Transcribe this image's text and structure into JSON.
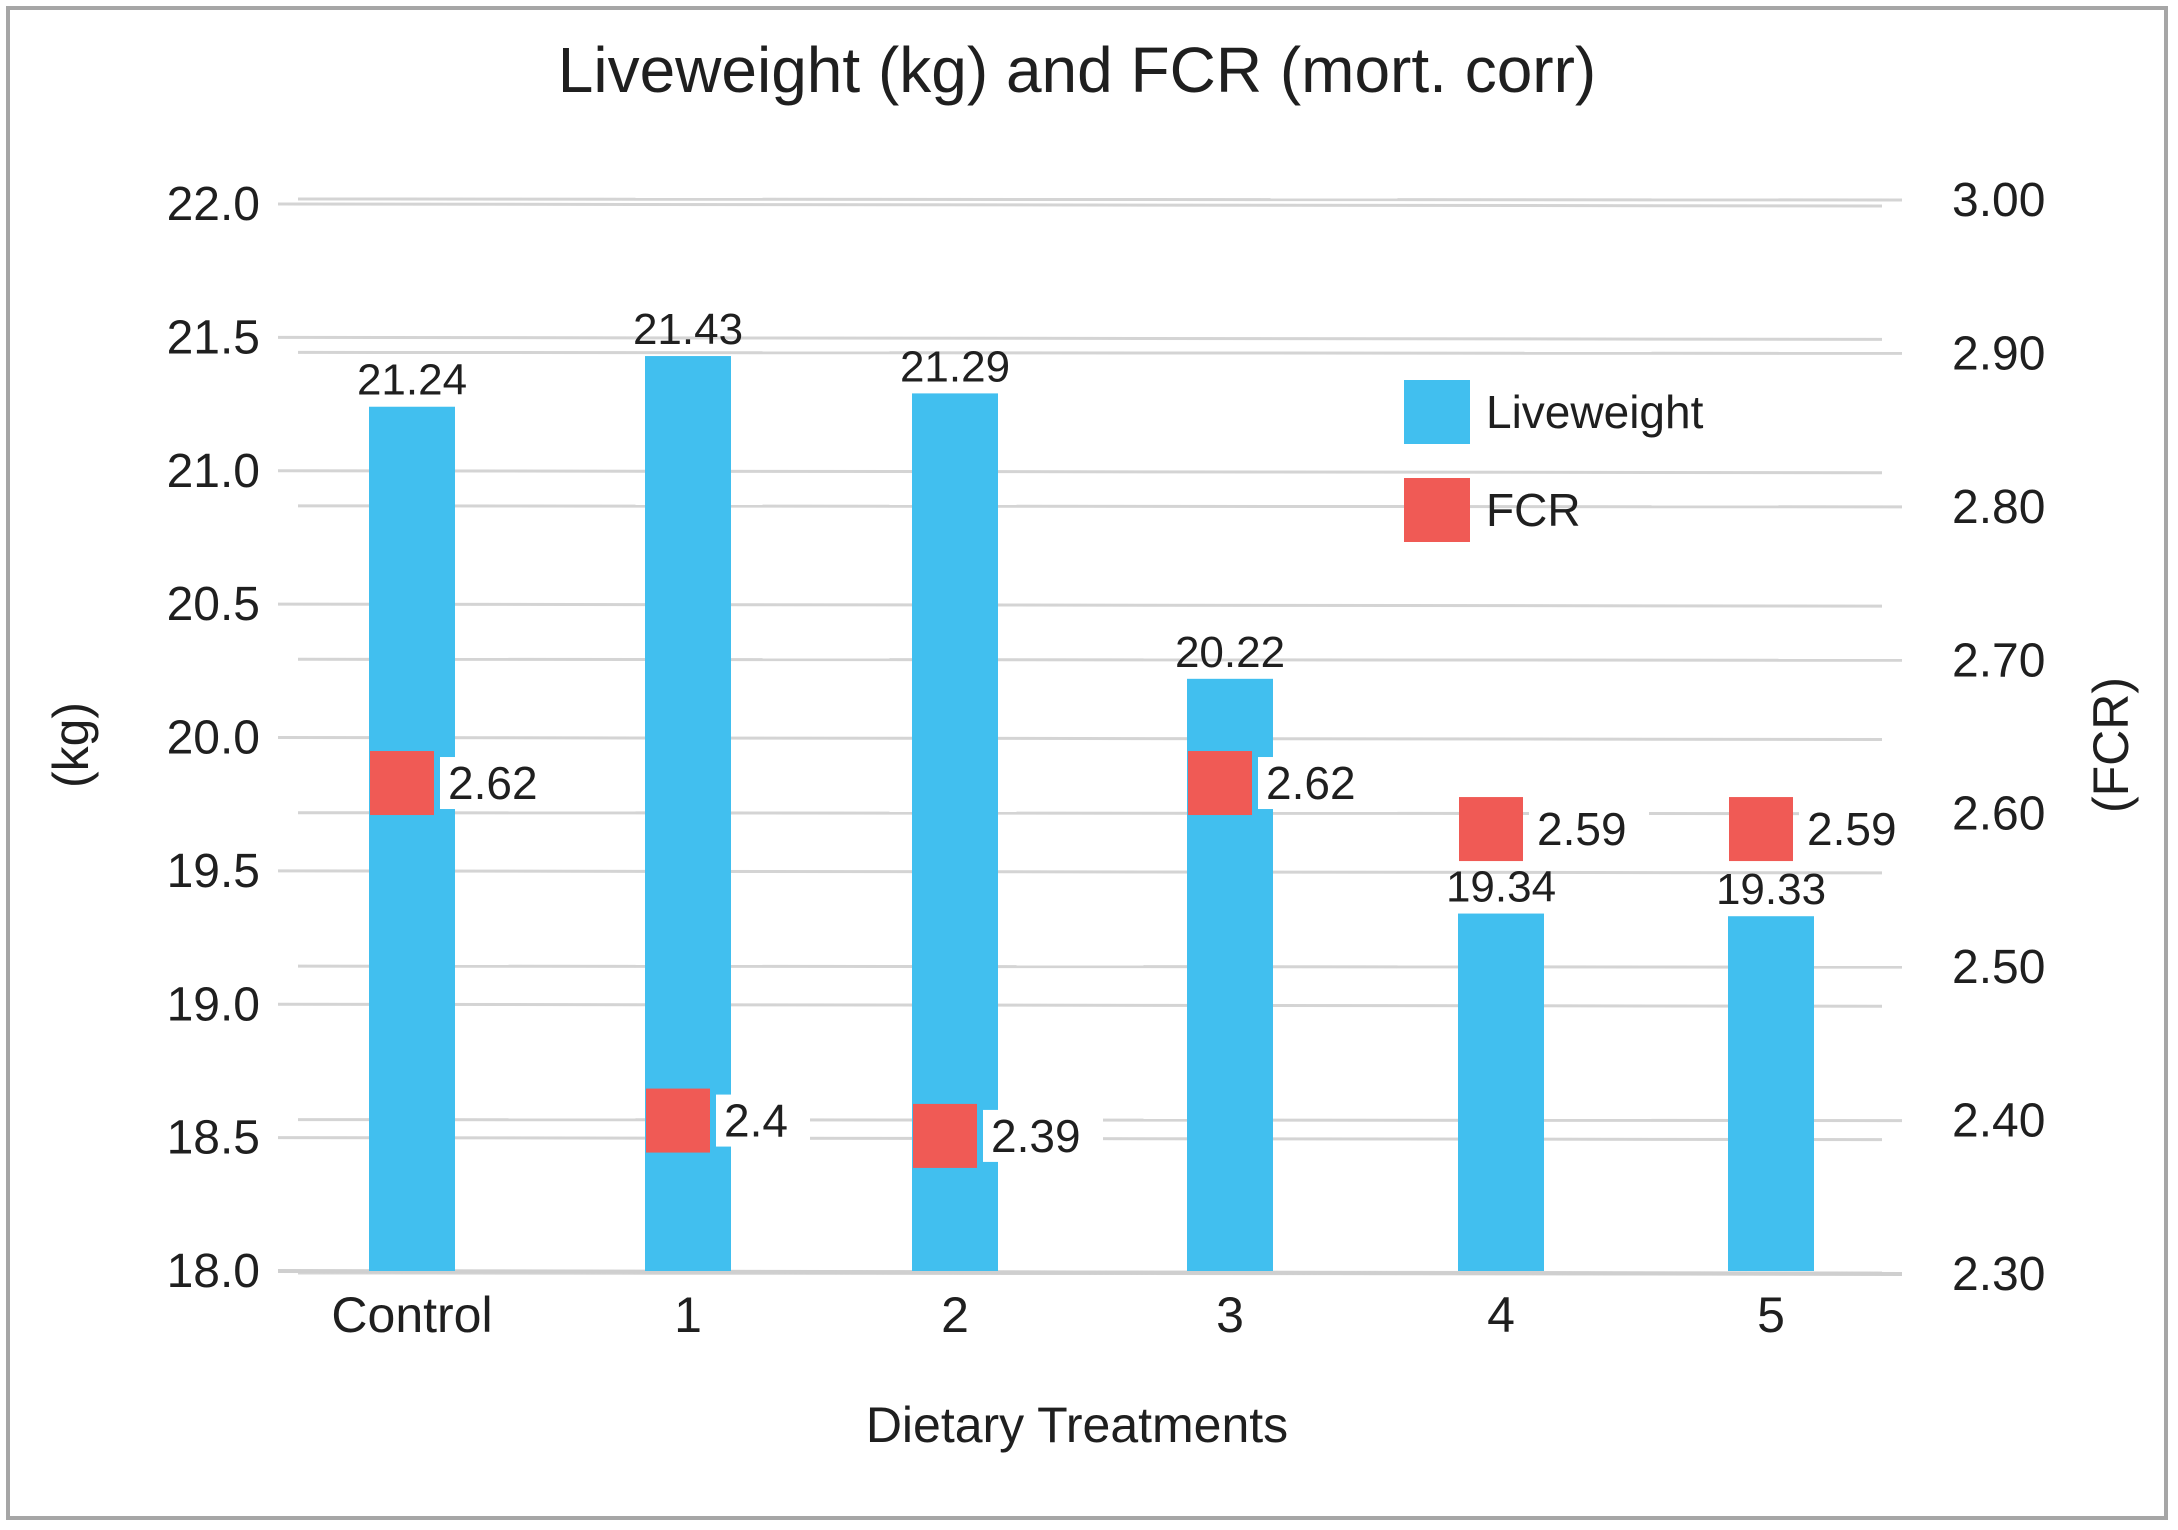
{
  "chart_data": {
    "type": "bar",
    "title": "Liveweight  (kg) and FCR (mort. corr)",
    "xlabel": "Dietary Treatments",
    "ylabel": "(kg)",
    "y2label": "(FCR)",
    "categories": [
      "Control",
      "1",
      "2",
      "3",
      "4",
      "5"
    ],
    "ylim": [
      18.0,
      22.0
    ],
    "y_ticks": [
      "18.0",
      "18.5",
      "19.0",
      "19.5",
      "20.0",
      "20.5",
      "21.0",
      "21.5",
      "22.0"
    ],
    "y2lim": [
      2.3,
      3.0
    ],
    "y2_ticks": [
      "2.30",
      "2.40",
      "2.50",
      "2.60",
      "2.70",
      "2.80",
      "2.90",
      "3.00"
    ],
    "grid": true,
    "legend_position": "top-right",
    "series": [
      {
        "name": "Liveweight",
        "type": "bar",
        "axis": "left",
        "color": "#41bfef",
        "values": [
          21.24,
          21.43,
          21.29,
          20.22,
          19.34,
          19.33
        ],
        "labels": [
          "21.24",
          "21.43",
          "21.29",
          "20.22",
          "19.34",
          "19.33"
        ]
      },
      {
        "name": "FCR",
        "type": "marker",
        "axis": "right",
        "color": "#f05a55",
        "values": [
          2.62,
          2.4,
          2.39,
          2.62,
          2.59,
          2.59
        ],
        "labels": [
          "2.62",
          "2.4",
          "2.39",
          "2.62",
          "2.59",
          "2.59"
        ]
      }
    ]
  }
}
